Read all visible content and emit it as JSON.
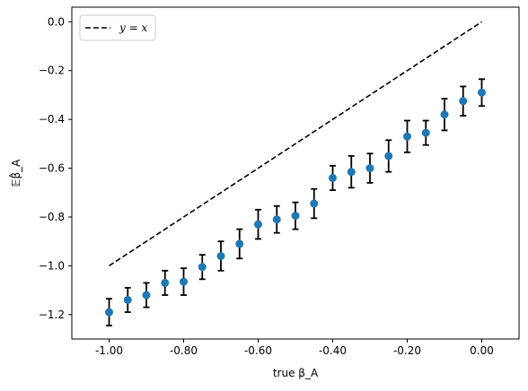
{
  "chart_data": {
    "type": "scatter",
    "x": [
      -1.0,
      -0.95,
      -0.9,
      -0.85,
      -0.8,
      -0.75,
      -0.7,
      -0.65,
      -0.6,
      -0.55,
      -0.5,
      -0.45,
      -0.4,
      -0.35,
      -0.3,
      -0.25,
      -0.2,
      -0.15,
      -0.1,
      -0.05,
      0.0
    ],
    "y": [
      -1.19,
      -1.14,
      -1.12,
      -1.07,
      -1.065,
      -1.005,
      -0.96,
      -0.91,
      -0.83,
      -0.81,
      -0.795,
      -0.745,
      -0.64,
      -0.615,
      -0.6,
      -0.55,
      -0.47,
      -0.455,
      -0.38,
      -0.325,
      -0.29
    ],
    "yerr": [
      0.055,
      0.05,
      0.05,
      0.05,
      0.055,
      0.05,
      0.06,
      0.06,
      0.06,
      0.055,
      0.055,
      0.06,
      0.05,
      0.065,
      0.06,
      0.065,
      0.065,
      0.05,
      0.065,
      0.06,
      0.055
    ],
    "reference_line": {
      "x": [
        -1.0,
        0.0
      ],
      "y": [
        -1.0,
        0.0
      ],
      "style": "dashed",
      "color": "#000000"
    },
    "legend": {
      "entries": [
        "y = x"
      ],
      "placement": "top-left"
    },
    "xlabel": "true β_A",
    "ylabel": "𝔼β̂_A",
    "xlim": [
      -1.1,
      0.1
    ],
    "ylim": [
      -1.3,
      0.06
    ],
    "xticks": [
      -1.0,
      -0.8,
      -0.6,
      -0.4,
      -0.2,
      0.0
    ],
    "xtick_labels": [
      "-1.00",
      "-0.80",
      "-0.60",
      "-0.40",
      "-0.20",
      "0.00"
    ],
    "yticks": [
      -1.2,
      -1.0,
      -0.8,
      -0.6,
      -0.4,
      -0.2,
      0.0
    ],
    "ytick_labels": [
      "−1.2",
      "−1.0",
      "−0.8",
      "−0.6",
      "−0.4",
      "−0.2",
      "0.0"
    ],
    "grid": false,
    "colors": {
      "points": "#1f77b4",
      "errorbars": "#000000",
      "line": "#000000"
    }
  }
}
